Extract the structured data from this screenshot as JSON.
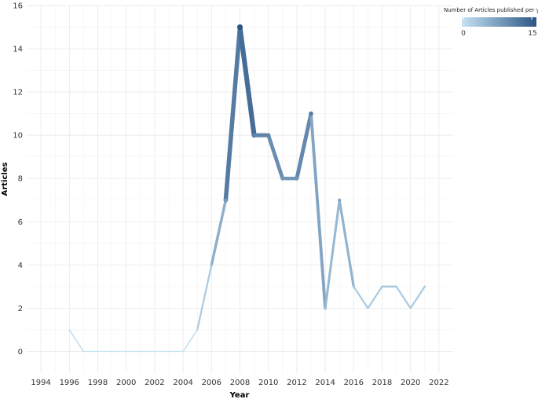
{
  "chart_data": {
    "type": "line",
    "title": "",
    "xlabel": "Year",
    "ylabel": "Articles",
    "x": [
      1996,
      1997,
      1998,
      1999,
      2000,
      2001,
      2002,
      2003,
      2004,
      2005,
      2006,
      2007,
      2008,
      2009,
      2010,
      2011,
      2012,
      2013,
      2014,
      2015,
      2016,
      2017,
      2018,
      2019,
      2020,
      2021
    ],
    "series": [
      {
        "values": [
          1,
          0,
          0,
          0,
          0,
          0,
          0,
          0,
          0,
          1,
          4,
          7,
          15,
          10,
          10,
          8,
          8,
          11,
          2,
          7,
          3,
          2,
          3,
          3,
          2,
          3
        ]
      }
    ],
    "xlim": [
      1993,
      2023
    ],
    "ylim": [
      -1,
      16
    ],
    "x_ticks": [
      "1994",
      "1996",
      "1998",
      "2000",
      "2002",
      "2004",
      "2006",
      "2008",
      "2010",
      "2012",
      "2014",
      "2016",
      "2018",
      "2020",
      "2022"
    ],
    "y_ticks": [
      "0",
      "2",
      "4",
      "6",
      "8",
      "10",
      "12",
      "14",
      "16"
    ],
    "grid": true,
    "line_width_and_color_encode_value": true,
    "legend": {
      "title": "Number of Articles published per year",
      "placement": "top-right",
      "min_label": "0",
      "max_label": "15",
      "color_low": "#c6e3f3",
      "color_high": "#2c5585"
    }
  }
}
